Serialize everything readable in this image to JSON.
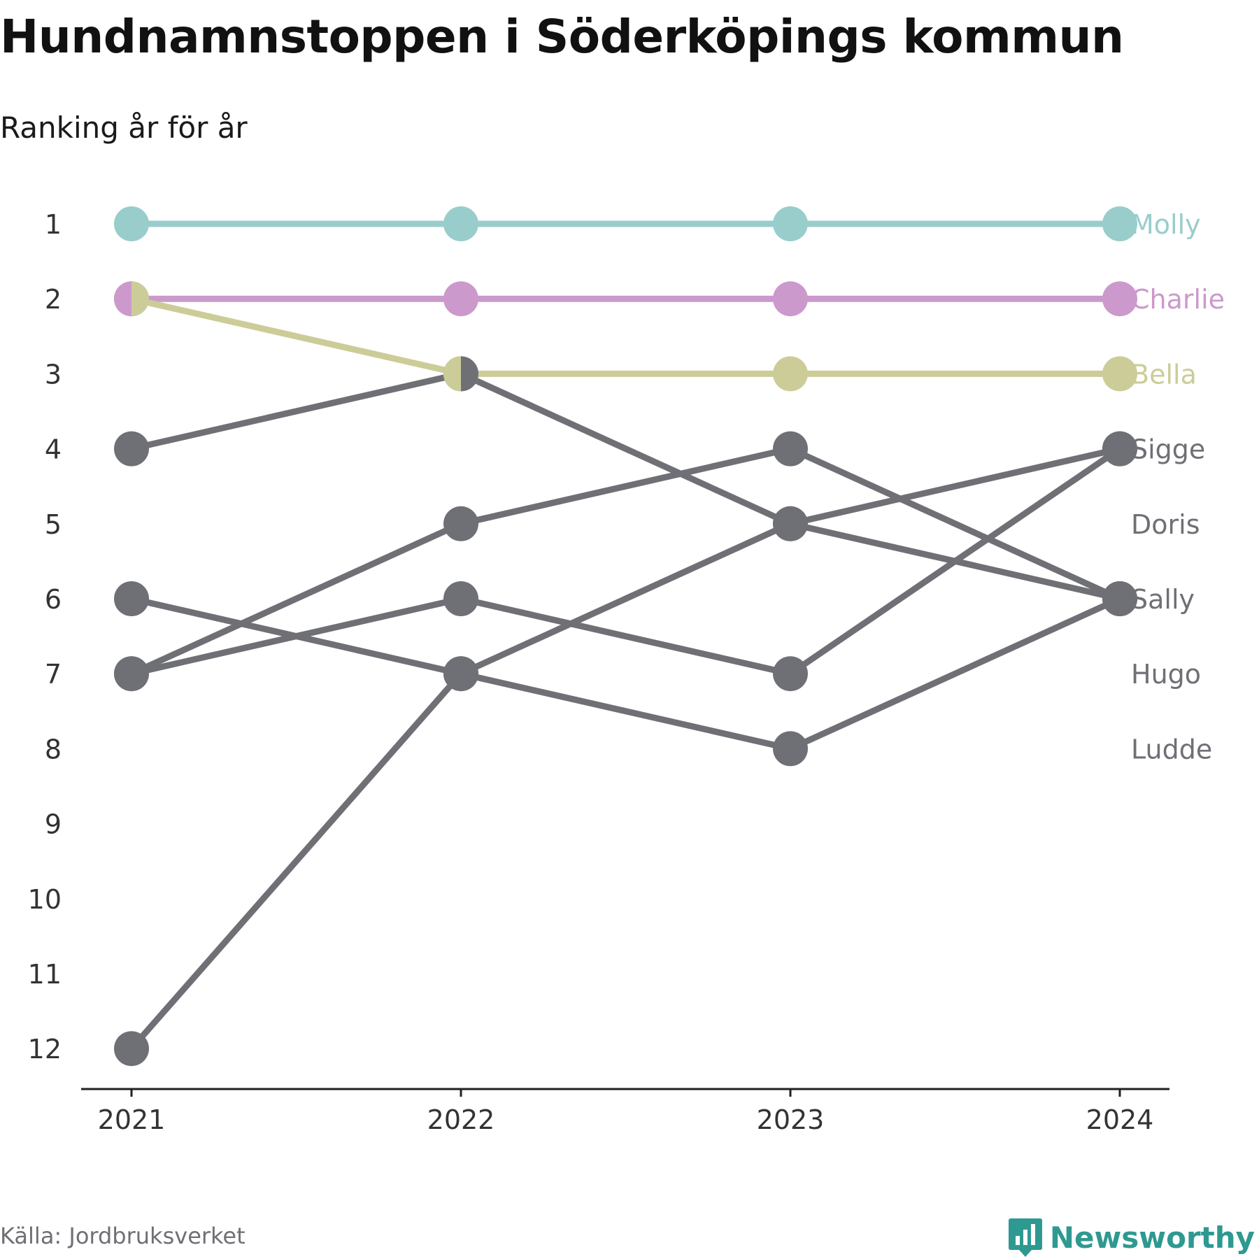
{
  "title": "Hundnamnstoppen i Söderköpings kommun",
  "subtitle": "Ranking år för år",
  "source": "Källa: Jordbruksverket",
  "brand": {
    "name": "Newsworthy",
    "icon": "newsworthy-logo-icon",
    "color": "#2e9991"
  },
  "chart_data": {
    "type": "line",
    "subtype": "bump",
    "x": [
      2021,
      2022,
      2023,
      2024
    ],
    "y_ticks": [
      1,
      2,
      3,
      4,
      5,
      6,
      7,
      8,
      9,
      10,
      11,
      12
    ],
    "ylim": [
      1,
      12
    ],
    "y_inverted": true,
    "grid": false,
    "legend": "direct labels at right",
    "series": [
      {
        "name": "Molly",
        "ranks": [
          1,
          1,
          1,
          1
        ],
        "color": "#99cdcc",
        "highlight": true
      },
      {
        "name": "Charlie",
        "ranks": [
          2,
          2,
          2,
          2
        ],
        "color": "#cc99cc",
        "highlight": true
      },
      {
        "name": "Bella",
        "ranks": [
          2,
          3,
          3,
          3
        ],
        "color": "#cccc99",
        "highlight": true
      },
      {
        "name": "Sigge",
        "ranks": [
          12,
          7,
          5,
          4
        ],
        "color": "#6f6f76",
        "highlight": false
      },
      {
        "name": "Doris",
        "ranks": [
          7,
          5,
          4,
          6
        ],
        "color": "#6f6f76",
        "highlight": false
      },
      {
        "name": "Sally",
        "ranks": [
          4,
          3,
          5,
          6
        ],
        "color": "#6f6f76",
        "highlight": false
      },
      {
        "name": "Hugo",
        "ranks": [
          7,
          6,
          7,
          4
        ],
        "color": "#6f6f76",
        "highlight": false
      },
      {
        "name": "Ludde",
        "ranks": [
          6,
          7,
          8,
          6
        ],
        "color": "#6f6f76",
        "highlight": false
      }
    ]
  }
}
